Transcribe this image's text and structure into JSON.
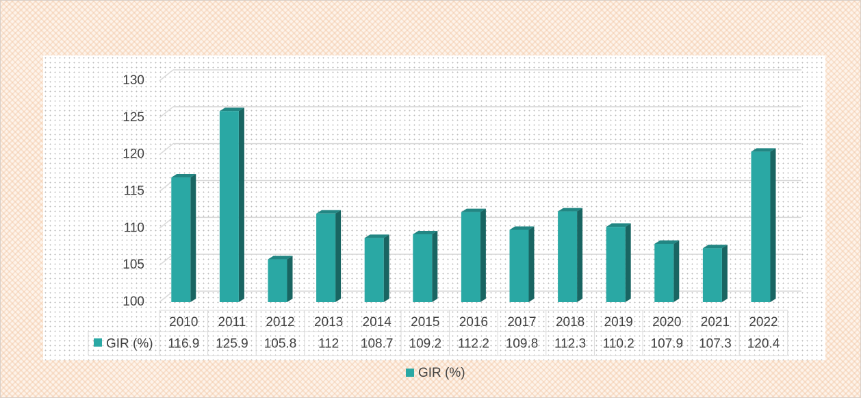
{
  "chart_data": {
    "type": "bar3d",
    "categories": [
      "2010",
      "2011",
      "2012",
      "2013",
      "2014",
      "2015",
      "2016",
      "2017",
      "2018",
      "2019",
      "2020",
      "2021",
      "2022"
    ],
    "series": [
      {
        "name": "GIR (%)",
        "color": "#2aa8a4",
        "values": [
          116.9,
          125.9,
          105.8,
          112,
          108.7,
          109.2,
          112.2,
          109.8,
          112.3,
          110.2,
          107.9,
          107.3,
          120.4
        ]
      }
    ],
    "ylim": [
      100,
      130
    ],
    "yticks": [
      100,
      105,
      110,
      115,
      120,
      125,
      130
    ],
    "grid": true,
    "data_table": true,
    "legend": "bottom"
  }
}
